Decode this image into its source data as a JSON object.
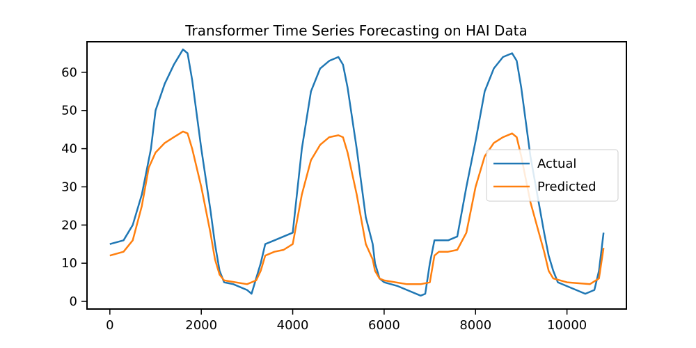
{
  "chart_data": {
    "type": "line",
    "title": "Transformer Time Series Forecasting on HAI Data",
    "xlabel": "",
    "ylabel": "",
    "xlim": [
      -500,
      11300
    ],
    "ylim": [
      -2,
      68
    ],
    "xticks": [
      0,
      2000,
      4000,
      6000,
      8000,
      10000
    ],
    "xtick_labels": [
      "0",
      "2000",
      "4000",
      "6000",
      "8000",
      "10000"
    ],
    "yticks": [
      0,
      10,
      20,
      30,
      40,
      50,
      60
    ],
    "ytick_labels": [
      "0",
      "10",
      "20",
      "30",
      "40",
      "50",
      "60"
    ],
    "grid": false,
    "legend_position": "center-right",
    "series": [
      {
        "name": "Actual",
        "color": "#1f77b4",
        "x": [
          0,
          300,
          500,
          700,
          900,
          1000,
          1200,
          1400,
          1600,
          1700,
          1800,
          2000,
          2200,
          2300,
          2400,
          2500,
          2700,
          3000,
          3100,
          3200,
          3300,
          3400,
          3600,
          3800,
          4000,
          4200,
          4400,
          4600,
          4800,
          5000,
          5100,
          5200,
          5400,
          5600,
          5750,
          5800,
          5900,
          6000,
          6300,
          6500,
          6800,
          6900,
          7000,
          7100,
          7200,
          7400,
          7600,
          7800,
          8000,
          8200,
          8400,
          8600,
          8800,
          8900,
          9000,
          9200,
          9500,
          9600,
          9700,
          9800,
          10000,
          10200,
          10400,
          10600,
          10700,
          10800
        ],
        "values": [
          15,
          16,
          20,
          28,
          40,
          50,
          57,
          62,
          66,
          65,
          58,
          40,
          24,
          15,
          8,
          5,
          4.5,
          3,
          2,
          6,
          10,
          15,
          16,
          17,
          18,
          40,
          55,
          61,
          63,
          64,
          62,
          56,
          40,
          22,
          15,
          10,
          6,
          5,
          4,
          3,
          1.5,
          2,
          10,
          16,
          16,
          16,
          17,
          30,
          42,
          55,
          61,
          64,
          65,
          63,
          56,
          38,
          18,
          12,
          8,
          5,
          4,
          3,
          2,
          3,
          8,
          18
        ]
      },
      {
        "name": "Predicted",
        "color": "#ff7f0e",
        "x": [
          0,
          300,
          500,
          700,
          850,
          1000,
          1200,
          1400,
          1600,
          1700,
          1800,
          2000,
          2200,
          2300,
          2400,
          2500,
          3000,
          3200,
          3300,
          3400,
          3600,
          3800,
          4000,
          4200,
          4400,
          4600,
          4800,
          5000,
          5100,
          5200,
          5400,
          5600,
          5750,
          5800,
          5900,
          6000,
          6500,
          6800,
          7000,
          7100,
          7200,
          7400,
          7600,
          7800,
          8000,
          8200,
          8400,
          8600,
          8800,
          8900,
          9000,
          9200,
          9500,
          9600,
          9700,
          10000,
          10500,
          10700,
          10800
        ],
        "values": [
          12,
          13,
          16,
          25,
          35,
          39,
          41.5,
          43,
          44.5,
          44,
          40,
          30,
          18,
          11,
          7,
          5.5,
          4.5,
          5.5,
          8,
          12,
          13,
          13.5,
          15,
          28,
          37,
          41,
          43,
          43.5,
          43,
          39,
          28,
          15,
          11,
          8,
          6,
          5.5,
          4.5,
          4.5,
          5,
          12,
          13,
          13,
          13.5,
          18,
          30,
          38,
          41.5,
          43,
          44,
          43,
          38,
          26,
          13,
          8,
          6,
          5,
          4.5,
          6,
          14
        ]
      }
    ]
  }
}
